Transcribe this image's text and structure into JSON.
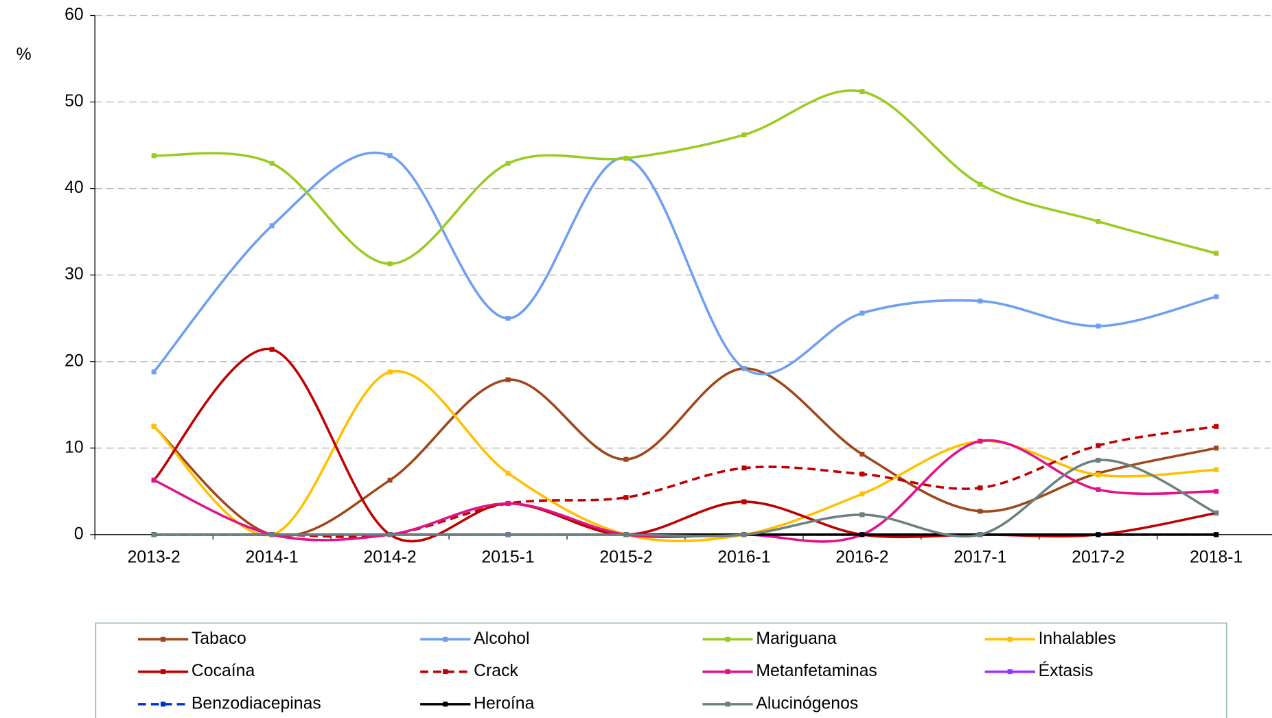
{
  "chart_data": {
    "type": "line",
    "y_label": "%",
    "categories": [
      "2013-2",
      "2014-1",
      "2014-2",
      "2015-1",
      "2015-2",
      "2016-1",
      "2016-2",
      "2017-1",
      "2017-2",
      "2018-1"
    ],
    "ylim": [
      0,
      60
    ],
    "yticks": [
      0,
      10,
      20,
      30,
      40,
      50,
      60
    ],
    "grid": true,
    "smooth": true,
    "series": [
      {
        "name": "Tabaco",
        "color": "#a0461b",
        "dash": false,
        "values": [
          12.5,
          0,
          6.3,
          17.9,
          8.7,
          19.2,
          9.3,
          2.7,
          7.1,
          10.0
        ]
      },
      {
        "name": "Alcohol",
        "color": "#6f9ff0",
        "dash": false,
        "values": [
          18.8,
          35.7,
          43.8,
          25.0,
          43.5,
          19.2,
          25.6,
          27.0,
          24.1,
          27.5
        ]
      },
      {
        "name": "Mariguana",
        "color": "#99cc22",
        "dash": false,
        "values": [
          43.8,
          42.9,
          31.3,
          42.9,
          43.5,
          46.2,
          51.2,
          40.5,
          36.2,
          32.5
        ]
      },
      {
        "name": "Inhalables",
        "color": "#ffc000",
        "dash": false,
        "values": [
          12.5,
          0,
          18.8,
          7.1,
          0,
          0,
          4.7,
          10.8,
          6.9,
          7.5
        ]
      },
      {
        "name": "Cocaína",
        "color": "#c00000",
        "dash": false,
        "values": [
          6.3,
          21.4,
          0,
          3.6,
          0,
          3.8,
          0,
          0,
          0,
          2.5
        ]
      },
      {
        "name": "Crack",
        "color": "#c00000",
        "dash": true,
        "values": [
          0,
          0,
          0,
          3.6,
          4.3,
          7.7,
          7.0,
          5.4,
          10.3,
          12.5
        ]
      },
      {
        "name": "Metanfetaminas",
        "color": "#e0138c",
        "dash": false,
        "values": [
          6.3,
          0,
          0,
          3.6,
          0,
          0,
          0,
          10.8,
          5.2,
          5.0
        ]
      },
      {
        "name": "Éxtasis",
        "color": "#9933ff",
        "dash": false,
        "values": [
          0,
          0,
          0,
          0,
          0,
          0,
          0,
          0,
          0,
          0
        ]
      },
      {
        "name": "Benzodiacepinas",
        "color": "#0033cc",
        "dash": true,
        "values": [
          0,
          0,
          0,
          0,
          0,
          0,
          0,
          0,
          0,
          0
        ]
      },
      {
        "name": "Heroína",
        "color": "#000000",
        "dash": false,
        "values": [
          0,
          0,
          0,
          0,
          0,
          0,
          0,
          0,
          0,
          0
        ]
      },
      {
        "name": "Alucinógenos",
        "color": "#6b8080",
        "dash": false,
        "values": [
          0,
          0,
          0,
          0,
          0,
          0,
          2.3,
          0,
          8.6,
          2.5
        ]
      }
    ]
  }
}
